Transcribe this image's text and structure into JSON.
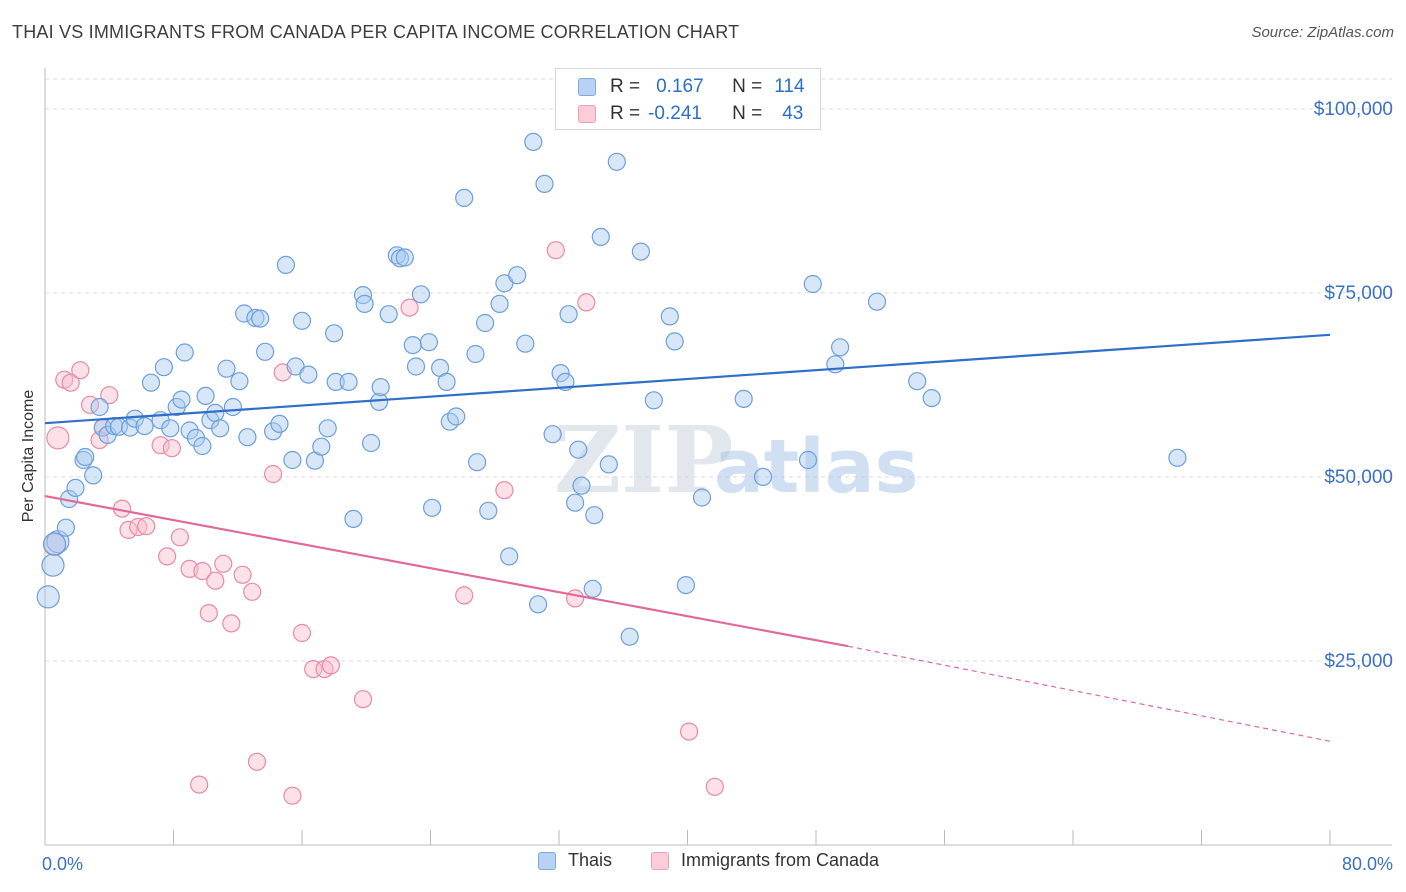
{
  "title": "THAI VS IMMIGRANTS FROM CANADA PER CAPITA INCOME CORRELATION CHART",
  "source": "Source: ZipAtlas.com",
  "watermark": {
    "zip": "ZIP",
    "atlas": "atlas"
  },
  "legend_box": {
    "rows": [
      {
        "r_label": "R =",
        "r_value": "0.167",
        "n_label": "N =",
        "n_value": "114"
      },
      {
        "r_label": "R =",
        "r_value": "-0.241",
        "n_label": "N =",
        "n_value": "43"
      }
    ]
  },
  "colors": {
    "thai_fill": "#a9c9f0",
    "thai_stroke": "#6d9fdc",
    "thai_line": "#2f6fc9",
    "canada_fill": "#f8bccd",
    "canada_stroke": "#e98aa7",
    "canada_line": "#e0699a",
    "axis_text": "#3a72c4",
    "grid": "#dcdcdc"
  },
  "chart_data": {
    "type": "scatter",
    "title": "THAI VS IMMIGRANTS FROM CANADA PER CAPITA INCOME CORRELATION CHART",
    "xlabel": "",
    "ylabel": "Per Capita Income",
    "xlim": [
      0,
      80
    ],
    "ylim": [
      0,
      105000
    ],
    "x_tick_labels": [
      "0.0%",
      "80.0%"
    ],
    "y_ticks": [
      25000,
      50000,
      75000,
      100000
    ],
    "y_tick_labels": [
      "$25,000",
      "$50,000",
      "$75,000",
      "$100,000"
    ],
    "grid": true,
    "legend": [
      "Thais",
      "Immigrants from Canada"
    ],
    "series": [
      {
        "name": "Thais",
        "r": 0.167,
        "n": 114,
        "trend": {
          "x": [
            0,
            80
          ],
          "y": [
            57300,
            69300
          ]
        },
        "points": [
          [
            0.2,
            33700
          ],
          [
            0.5,
            38000
          ],
          [
            0.8,
            41200
          ],
          [
            1.3,
            43100
          ],
          [
            1.5,
            47000
          ],
          [
            1.9,
            48500
          ],
          [
            2.4,
            52300
          ],
          [
            2.5,
            52700
          ],
          [
            3.0,
            50200
          ],
          [
            3.4,
            59500
          ],
          [
            3.6,
            56700
          ],
          [
            3.9,
            55700
          ],
          [
            4.3,
            56900
          ],
          [
            4.6,
            56800
          ],
          [
            5.3,
            56700
          ],
          [
            5.6,
            57900
          ],
          [
            6.2,
            56900
          ],
          [
            6.6,
            62800
          ],
          [
            7.2,
            57700
          ],
          [
            7.4,
            64900
          ],
          [
            7.8,
            56600
          ],
          [
            8.2,
            59500
          ],
          [
            8.5,
            60500
          ],
          [
            8.7,
            66900
          ],
          [
            9.0,
            56300
          ],
          [
            9.4,
            55300
          ],
          [
            9.8,
            54200
          ],
          [
            10.0,
            61000
          ],
          [
            10.3,
            57700
          ],
          [
            10.6,
            58700
          ],
          [
            10.9,
            56600
          ],
          [
            11.3,
            64700
          ],
          [
            11.7,
            59500
          ],
          [
            12.1,
            63000
          ],
          [
            12.4,
            72200
          ],
          [
            12.6,
            55400
          ],
          [
            13.1,
            71600
          ],
          [
            13.4,
            71500
          ],
          [
            13.7,
            67000
          ],
          [
            14.2,
            56200
          ],
          [
            14.6,
            57200
          ],
          [
            15.0,
            78800
          ],
          [
            15.4,
            52300
          ],
          [
            15.6,
            65000
          ],
          [
            16.0,
            71200
          ],
          [
            16.4,
            63900
          ],
          [
            16.8,
            52200
          ],
          [
            17.2,
            54100
          ],
          [
            17.6,
            56600
          ],
          [
            18.0,
            69500
          ],
          [
            18.1,
            62900
          ],
          [
            18.9,
            62900
          ],
          [
            19.2,
            44300
          ],
          [
            19.8,
            74700
          ],
          [
            19.9,
            73500
          ],
          [
            20.3,
            54600
          ],
          [
            20.8,
            60200
          ],
          [
            20.9,
            62200
          ],
          [
            21.4,
            72100
          ],
          [
            21.9,
            80100
          ],
          [
            22.1,
            79700
          ],
          [
            22.4,
            79800
          ],
          [
            22.9,
            67900
          ],
          [
            23.1,
            65000
          ],
          [
            23.4,
            74800
          ],
          [
            23.9,
            68300
          ],
          [
            24.1,
            45800
          ],
          [
            24.6,
            64800
          ],
          [
            25.0,
            62900
          ],
          [
            25.2,
            57500
          ],
          [
            25.6,
            58200
          ],
          [
            26.1,
            87900
          ],
          [
            26.8,
            66700
          ],
          [
            26.9,
            52000
          ],
          [
            27.4,
            70900
          ],
          [
            27.6,
            45400
          ],
          [
            28.3,
            73500
          ],
          [
            28.6,
            76300
          ],
          [
            28.9,
            39200
          ],
          [
            29.4,
            77400
          ],
          [
            29.9,
            68100
          ],
          [
            30.4,
            95500
          ],
          [
            30.7,
            32700
          ],
          [
            31.1,
            89800
          ],
          [
            31.6,
            55800
          ],
          [
            32.1,
            64100
          ],
          [
            32.4,
            62900
          ],
          [
            32.6,
            72100
          ],
          [
            33.0,
            46500
          ],
          [
            33.2,
            53700
          ],
          [
            33.4,
            48800
          ],
          [
            34.2,
            44800
          ],
          [
            34.6,
            82600
          ],
          [
            34.1,
            34800
          ],
          [
            35.1,
            51700
          ],
          [
            35.6,
            92800
          ],
          [
            36.4,
            28300
          ],
          [
            37.1,
            80600
          ],
          [
            37.9,
            60400
          ],
          [
            38.9,
            71800
          ],
          [
            39.2,
            68400
          ],
          [
            39.9,
            35300
          ],
          [
            40.9,
            47200
          ],
          [
            43.5,
            60600
          ],
          [
            44.7,
            50000
          ],
          [
            47.5,
            52300
          ],
          [
            47.8,
            76200
          ],
          [
            49.2,
            65300
          ],
          [
            49.5,
            67600
          ],
          [
            51.8,
            73800
          ],
          [
            54.3,
            63000
          ],
          [
            55.2,
            60700
          ],
          [
            70.5,
            52600
          ],
          [
            0.6,
            40900
          ]
        ]
      },
      {
        "name": "Immigrants from Canada",
        "r": -0.241,
        "n": 43,
        "trend": {
          "x": [
            0,
            50
          ],
          "y": [
            47400,
            27000
          ]
        },
        "trend_dashed": {
          "x": [
            50,
            80
          ],
          "y": [
            27000,
            14100
          ]
        },
        "points": [
          [
            0.6,
            40800
          ],
          [
            0.8,
            55300
          ],
          [
            1.2,
            63200
          ],
          [
            1.6,
            62800
          ],
          [
            2.2,
            64500
          ],
          [
            2.8,
            59800
          ],
          [
            3.6,
            56700
          ],
          [
            4.0,
            61100
          ],
          [
            3.4,
            55000
          ],
          [
            4.8,
            45700
          ],
          [
            5.2,
            42800
          ],
          [
            5.8,
            43200
          ],
          [
            6.3,
            43300
          ],
          [
            7.2,
            54300
          ],
          [
            7.6,
            39200
          ],
          [
            7.9,
            53900
          ],
          [
            8.4,
            41800
          ],
          [
            9.0,
            37500
          ],
          [
            9.6,
            8200
          ],
          [
            9.8,
            37200
          ],
          [
            10.2,
            31500
          ],
          [
            10.6,
            35900
          ],
          [
            11.1,
            38200
          ],
          [
            11.6,
            30100
          ],
          [
            12.3,
            36700
          ],
          [
            12.9,
            34400
          ],
          [
            13.2,
            11300
          ],
          [
            14.2,
            50400
          ],
          [
            14.8,
            64200
          ],
          [
            15.4,
            6700
          ],
          [
            16.0,
            28800
          ],
          [
            16.7,
            23900
          ],
          [
            17.4,
            23900
          ],
          [
            17.8,
            24400
          ],
          [
            19.8,
            19800
          ],
          [
            22.7,
            73000
          ],
          [
            26.1,
            33900
          ],
          [
            28.6,
            48200
          ],
          [
            31.8,
            80800
          ],
          [
            33.0,
            33500
          ],
          [
            33.7,
            73700
          ],
          [
            40.1,
            15400
          ],
          [
            41.7,
            7900
          ]
        ]
      }
    ]
  }
}
